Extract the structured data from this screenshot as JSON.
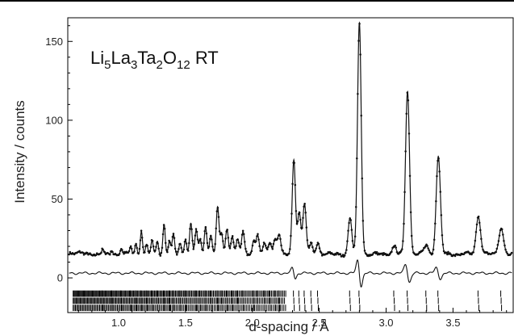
{
  "chart_data": {
    "type": "line",
    "title": "",
    "annotation": {
      "formula_parts": [
        {
          "text": "Li",
          "sub": false
        },
        {
          "text": "5",
          "sub": true
        },
        {
          "text": "La",
          "sub": false
        },
        {
          "text": "3",
          "sub": true
        },
        {
          "text": "Ta",
          "sub": false
        },
        {
          "text": "2",
          "sub": true
        },
        {
          "text": "O",
          "sub": false
        },
        {
          "text": "12",
          "sub": true
        },
        {
          "text": " RT",
          "sub": false
        }
      ]
    },
    "xlabel": "d-spacing / Å",
    "ylabel": "Intensity / counts",
    "xlim": [
      0.62,
      3.95
    ],
    "ylim": [
      -22,
      165
    ],
    "x_ticks": [
      1.0,
      1.5,
      2.0,
      2.5,
      3.0,
      3.5
    ],
    "x_tick_labels": [
      "1.0",
      "1.5",
      "2.0",
      "2.5",
      "3.0",
      "3.5"
    ],
    "y_ticks": [
      0,
      50,
      100,
      150
    ],
    "y_tick_labels": [
      "0",
      "50",
      "100",
      "150"
    ],
    "grid": false,
    "background_level": 15,
    "peaks": [
      {
        "d": 0.88,
        "h": 3
      },
      {
        "d": 0.95,
        "h": 3
      },
      {
        "d": 1.02,
        "h": 4
      },
      {
        "d": 1.09,
        "h": 5
      },
      {
        "d": 1.13,
        "h": 7
      },
      {
        "d": 1.17,
        "h": 15
      },
      {
        "d": 1.21,
        "h": 6
      },
      {
        "d": 1.25,
        "h": 8
      },
      {
        "d": 1.29,
        "h": 9
      },
      {
        "d": 1.34,
        "h": 19
      },
      {
        "d": 1.38,
        "h": 8
      },
      {
        "d": 1.41,
        "h": 12
      },
      {
        "d": 1.46,
        "h": 7
      },
      {
        "d": 1.5,
        "h": 10
      },
      {
        "d": 1.54,
        "h": 19
      },
      {
        "d": 1.58,
        "h": 15
      },
      {
        "d": 1.61,
        "h": 9
      },
      {
        "d": 1.65,
        "h": 18
      },
      {
        "d": 1.69,
        "h": 12
      },
      {
        "d": 1.74,
        "h": 29
      },
      {
        "d": 1.77,
        "h": 13
      },
      {
        "d": 1.81,
        "h": 16
      },
      {
        "d": 1.85,
        "h": 12
      },
      {
        "d": 1.89,
        "h": 9
      },
      {
        "d": 1.93,
        "h": 14
      },
      {
        "d": 2.01,
        "h": 9
      },
      {
        "d": 2.04,
        "h": 12
      },
      {
        "d": 2.09,
        "h": 6
      },
      {
        "d": 2.13,
        "h": 8
      },
      {
        "d": 2.17,
        "h": 10
      },
      {
        "d": 2.2,
        "h": 13
      },
      {
        "d": 2.31,
        "h": 60
      },
      {
        "d": 2.35,
        "h": 27
      },
      {
        "d": 2.39,
        "h": 32
      },
      {
        "d": 2.44,
        "h": 6
      },
      {
        "d": 2.49,
        "h": 7
      },
      {
        "d": 2.73,
        "h": 23
      },
      {
        "d": 2.8,
        "h": 147
      },
      {
        "d": 3.06,
        "h": 5
      },
      {
        "d": 3.16,
        "h": 104
      },
      {
        "d": 3.3,
        "h": 6
      },
      {
        "d": 3.39,
        "h": 62
      },
      {
        "d": 3.69,
        "h": 24
      },
      {
        "d": 3.86,
        "h": 17
      }
    ],
    "series": [
      {
        "style": "observed points + calculated profile",
        "offset": 0
      },
      {
        "style": "difference curve",
        "offset": 3
      },
      {
        "style": "reflection tick marks",
        "rows": 3
      }
    ]
  }
}
